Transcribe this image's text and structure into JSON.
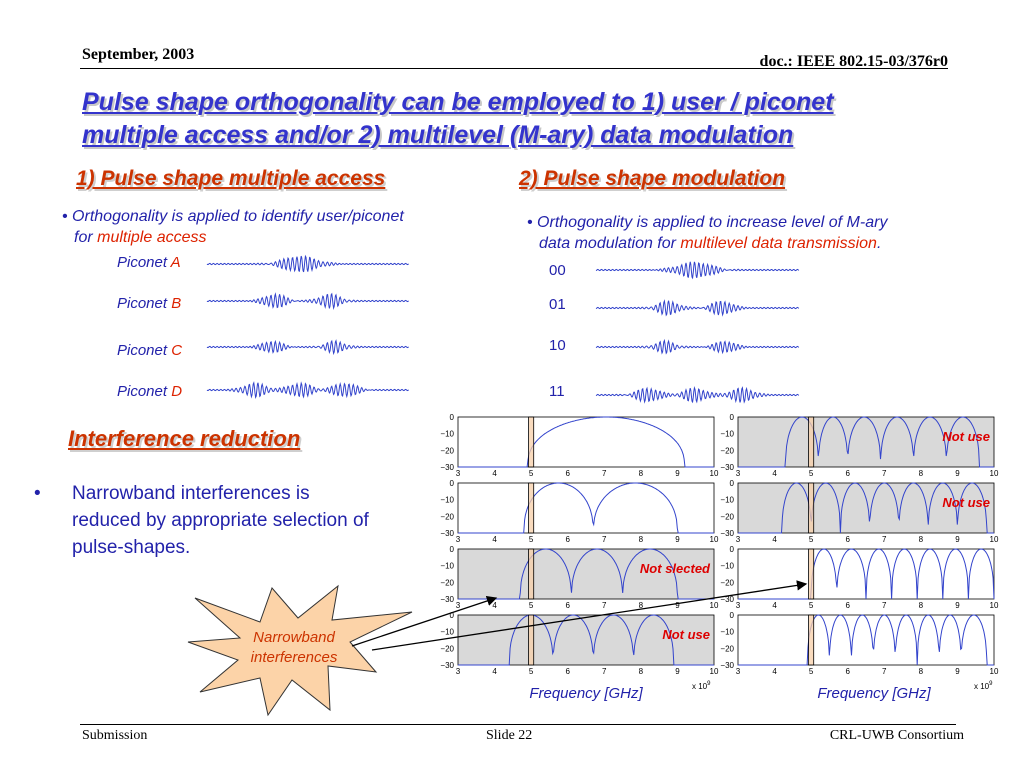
{
  "header": {
    "date": "September, 2003",
    "doc": "doc.: IEEE 802.15-03/376r0"
  },
  "title": {
    "line1": "Pulse shape orthogonality can be employed to 1) user / piconet",
    "line2": "multiple access and/or 2) multilevel (M-ary) data modulation"
  },
  "left": {
    "heading": "1) Pulse shape multiple access",
    "bullet_part1": "• Orthogonality is applied to identify user/piconet",
    "bullet_part2": "for ",
    "bullet_highlight": "multiple access",
    "piconets": [
      {
        "label": "Piconet ",
        "letter": "A"
      },
      {
        "label": "Piconet ",
        "letter": "B"
      },
      {
        "label": "Piconet ",
        "letter": "C"
      },
      {
        "label": "Piconet ",
        "letter": "D"
      }
    ]
  },
  "right": {
    "heading": "2) Pulse shape modulation",
    "bullet_part1": "• Orthogonality is applied to increase level of M-ary",
    "bullet_part2": "data modulation for ",
    "bullet_highlight": "multilevel data transmission",
    "bullet_end": ".",
    "codes": [
      "00",
      "01",
      "10",
      "11"
    ]
  },
  "interference": {
    "heading": "Interference reduction",
    "bullet_marker": "•",
    "text_lines": [
      "Narrowband interferences is",
      "reduced by appropriate selection of",
      "pulse-shapes."
    ],
    "star_label_line1": "Narrowband",
    "star_label_line2": "interferences"
  },
  "plots": {
    "ytick_labels": [
      "0",
      "−10",
      "−20",
      "−30"
    ],
    "xtick_labels": [
      "3",
      "4",
      "5",
      "6",
      "7",
      "8",
      "9",
      "10"
    ],
    "xlabel": "Frequency [GHz]",
    "exponent": "x 10",
    "exponent_power": "9",
    "left_panels": [
      {
        "tag": "",
        "shaded": false
      },
      {
        "tag": "",
        "shaded": false
      },
      {
        "tag": "Not slected",
        "shaded": true
      },
      {
        "tag": "Not use",
        "shaded": true
      }
    ],
    "right_panels": [
      {
        "tag": "Not use",
        "shaded": true
      },
      {
        "tag": "Not use",
        "shaded": true
      },
      {
        "tag": "",
        "shaded": false
      },
      {
        "tag": "",
        "shaded": false
      }
    ],
    "colors": {
      "curve": "#3344cc",
      "band": "#f7cfa8",
      "shade": "#d9d9d9",
      "tag": "#dd0000"
    }
  },
  "footer": {
    "left": "Submission",
    "center": "Slide 22",
    "right": "CRL-UWB Consortium"
  }
}
